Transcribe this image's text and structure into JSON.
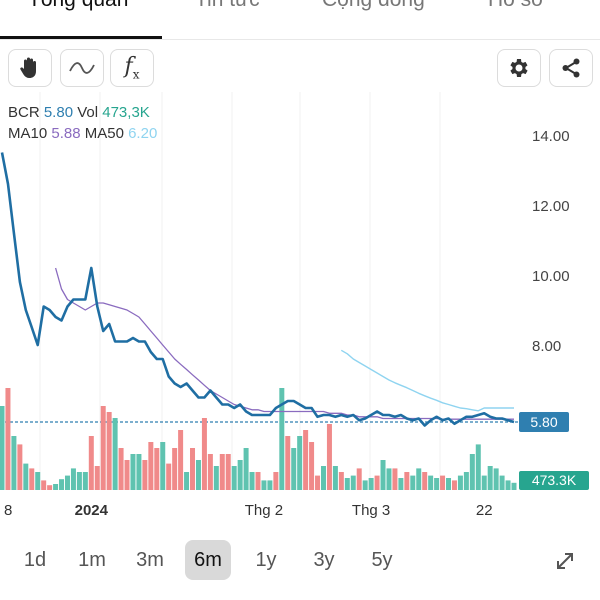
{
  "tabs": [
    {
      "label": "Tổng quan",
      "active": true
    },
    {
      "label": "Tin tức",
      "active": false
    },
    {
      "label": "Cộng đồng",
      "active": false
    },
    {
      "label": "Hồ sơ",
      "active": false
    }
  ],
  "toolbar": {
    "icons": [
      "hand-icon",
      "trendline-icon",
      "function-icon",
      "gear-icon",
      "share-icon"
    ]
  },
  "legend": {
    "symbol": "BCR",
    "price": "5.80",
    "vol_label": "Vol",
    "vol_value": "473,3K",
    "ma10_label": "MA10",
    "ma10_value": "5.88",
    "ma50_label": "MA50",
    "ma50_value": "6.20"
  },
  "colors": {
    "price_line": "#1f6ea3",
    "ma10": "#8a6bbf",
    "ma50": "#8fd4f0",
    "up_bar": "#5fc3b0",
    "down_bar": "#f08a8a",
    "price_tag": "#2f7fb0",
    "vol_tag": "#27a58f",
    "ma10_text": "#8a6bbf",
    "ma50_text": "#8fd4f0",
    "price_text": "#2f7fb0",
    "vol_text": "#27a58f"
  },
  "chart_data": {
    "type": "line",
    "y_ticks": [
      "14.00",
      "12.00",
      "10.00",
      "8.00"
    ],
    "ylim": [
      4.0,
      14.0
    ],
    "x_labels": [
      {
        "label": "8",
        "bold": false,
        "i": 0
      },
      {
        "label": "2024",
        "bold": true,
        "i": 15
      },
      {
        "label": "Thg 2",
        "bold": false,
        "i": 44
      },
      {
        "label": "Thg 3",
        "bold": false,
        "i": 62
      },
      {
        "label": "22",
        "bold": false,
        "i": 81
      }
    ],
    "price_tag": "5.80",
    "vol_tag": "473.3K",
    "series": [
      {
        "name": "BCR",
        "values": [
          13.5,
          12.6,
          11.2,
          9.8,
          9.0,
          8.5,
          8.0,
          9.1,
          9.0,
          8.8,
          8.7,
          9.1,
          9.3,
          9.3,
          9.3,
          10.2,
          9.1,
          8.4,
          8.6,
          8.1,
          8.1,
          8.1,
          8.2,
          8.1,
          8.1,
          7.8,
          7.6,
          7.6,
          7.1,
          6.9,
          6.8,
          6.9,
          6.7,
          6.5,
          6.5,
          6.7,
          6.5,
          6.3,
          6.3,
          6.2,
          6.3,
          6.1,
          6.0,
          6.0,
          6.0,
          6.0,
          6.2,
          6.3,
          6.4,
          6.4,
          6.3,
          6.2,
          6.2,
          5.95,
          6.0,
          6.0,
          5.95,
          6.0,
          5.95,
          6.0,
          5.85,
          5.9,
          6.0,
          6.1,
          6.0,
          6.0,
          5.95,
          6.0,
          5.9,
          5.85,
          5.9,
          5.7,
          5.85,
          5.95,
          5.85,
          5.9,
          5.75,
          5.85,
          5.95,
          5.95,
          6.0,
          6.05,
          5.95,
          5.9,
          5.9,
          5.85,
          5.8
        ]
      },
      {
        "name": "MA10",
        "start": 9,
        "values": [
          10.2,
          9.6,
          9.3,
          9.2,
          9.1,
          9.0,
          9.1,
          9.2,
          9.2,
          9.15,
          9.1,
          9.05,
          9.0,
          8.9,
          8.8,
          8.6,
          8.4,
          8.2,
          8.0,
          7.8,
          7.6,
          7.45,
          7.3,
          7.15,
          7.0,
          6.85,
          6.7,
          6.6,
          6.5,
          6.4,
          6.3,
          6.25,
          6.2,
          6.15,
          6.15,
          6.1,
          6.1,
          6.1,
          6.1,
          6.1,
          6.1,
          6.1,
          6.1,
          6.1,
          6.1,
          6.1,
          6.05,
          6.05,
          6.05,
          6.0,
          6.0,
          5.95,
          5.95,
          5.95,
          5.95,
          5.9,
          5.9,
          5.9,
          5.9,
          5.9,
          5.9,
          5.9,
          5.9,
          5.9,
          5.9,
          5.88,
          5.88,
          5.88,
          5.88,
          5.88,
          5.88,
          5.88,
          5.88,
          5.88,
          5.88,
          5.88,
          5.88,
          5.88
        ]
      },
      {
        "name": "MA50",
        "start": 57,
        "values": [
          7.85,
          7.75,
          7.6,
          7.5,
          7.4,
          7.3,
          7.2,
          7.1,
          7.0,
          6.92,
          6.85,
          6.78,
          6.7,
          6.62,
          6.55,
          6.48,
          6.42,
          6.35,
          6.3,
          6.25,
          6.2,
          6.18,
          6.15,
          6.12,
          6.2,
          6.2,
          6.2,
          6.2,
          6.2,
          6.2
        ]
      },
      {
        "name": "Vol",
        "values": [
          0.7,
          0.85,
          0.45,
          0.38,
          0.22,
          0.18,
          0.15,
          0.08,
          0.04,
          0.05,
          0.09,
          0.12,
          0.18,
          0.15,
          0.15,
          0.45,
          0.2,
          0.7,
          0.65,
          0.6,
          0.35,
          0.25,
          0.3,
          0.3,
          0.25,
          0.4,
          0.35,
          0.4,
          0.22,
          0.35,
          0.5,
          0.15,
          0.35,
          0.25,
          0.6,
          0.3,
          0.2,
          0.3,
          0.3,
          0.2,
          0.25,
          0.35,
          0.15,
          0.15,
          0.08,
          0.08,
          0.15,
          0.85,
          0.45,
          0.35,
          0.45,
          0.5,
          0.4,
          0.12,
          0.2,
          0.55,
          0.2,
          0.15,
          0.1,
          0.12,
          0.18,
          0.08,
          0.1,
          0.12,
          0.25,
          0.18,
          0.18,
          0.1,
          0.15,
          0.12,
          0.18,
          0.15,
          0.12,
          0.1,
          0.12,
          0.1,
          0.08,
          0.12,
          0.15,
          0.3,
          0.38,
          0.12,
          0.2,
          0.18,
          0.12,
          0.08,
          0.06
        ],
        "down": [
          0,
          1,
          0,
          1,
          0,
          1,
          0,
          1,
          1,
          0,
          0,
          0,
          0,
          0,
          0,
          1,
          1,
          1,
          1,
          0,
          1,
          1,
          0,
          0,
          1,
          1,
          1,
          0,
          1,
          1,
          1,
          0,
          1,
          0,
          1,
          1,
          0,
          1,
          1,
          0,
          0,
          0,
          0,
          1,
          0,
          0,
          1,
          0,
          1,
          0,
          0,
          1,
          1,
          1,
          0,
          1,
          0,
          1,
          0,
          0,
          1,
          0,
          0,
          1,
          0,
          0,
          1,
          0,
          1,
          0,
          0,
          1,
          0,
          0,
          1,
          0,
          1,
          0,
          0,
          0,
          0,
          0,
          0,
          0,
          0,
          0,
          0
        ]
      }
    ]
  },
  "range": {
    "options": [
      "1d",
      "1m",
      "3m",
      "6m",
      "1y",
      "3y",
      "5y"
    ],
    "active": "6m"
  }
}
